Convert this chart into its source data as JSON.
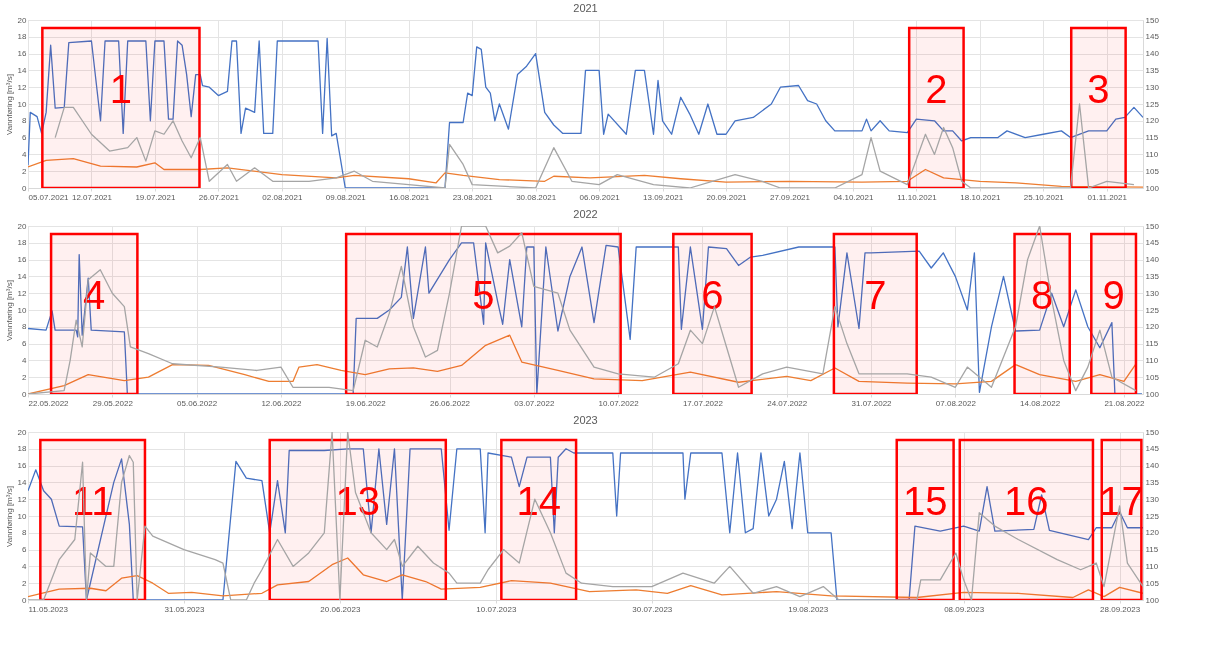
{
  "chart_data": [
    {
      "type": "line",
      "title": "2021",
      "ylabel": "Vannføring [m³/s]",
      "grid": true,
      "xlim": [
        "2021-07-05",
        "2021-11-05"
      ],
      "xticks": [
        {
          "value": "2021-07-05",
          "label": "05.07.2021"
        },
        {
          "value": "2021-07-12",
          "label": "12.07.2021"
        },
        {
          "value": "2021-07-19",
          "label": "19.07.2021"
        },
        {
          "value": "2021-07-26",
          "label": "26.07.2021"
        },
        {
          "value": "2021-08-02",
          "label": "02.08.2021"
        },
        {
          "value": "2021-08-09",
          "label": "09.08.2021"
        },
        {
          "value": "2021-08-16",
          "label": "16.08.2021"
        },
        {
          "value": "2021-08-23",
          "label": "23.08.2021"
        },
        {
          "value": "2021-08-30",
          "label": "30.08.2021"
        },
        {
          "value": "2021-09-06",
          "label": "06.09.2021"
        },
        {
          "value": "2021-09-13",
          "label": "13.09.2021"
        },
        {
          "value": "2021-09-20",
          "label": "20.09.2021"
        },
        {
          "value": "2021-09-27",
          "label": "27.09.2021"
        },
        {
          "value": "2021-10-04",
          "label": "04.10.2021"
        },
        {
          "value": "2021-10-11",
          "label": "11.10.2021"
        },
        {
          "value": "2021-10-18",
          "label": "18.10.2021"
        },
        {
          "value": "2021-10-25",
          "label": "25.10.2021"
        },
        {
          "value": "2021-11-01",
          "label": "01.11.2021"
        }
      ],
      "ylim": [
        0,
        20
      ],
      "yticks": [
        0,
        2,
        4,
        6,
        8,
        10,
        12,
        14,
        16,
        18,
        20
      ],
      "y2lim": [
        100,
        150
      ],
      "y2ticks": [
        100,
        105,
        110,
        115,
        120,
        125,
        130,
        135,
        140,
        145,
        150
      ],
      "series": [
        {
          "color": "#4472c4",
          "x": [
            "2021-07-05",
            "2021-07-05T06:00",
            "2021-07-06",
            "2021-07-06T12:00",
            "2021-07-07",
            "2021-07-07T12:00",
            "2021-07-08",
            "2021-07-09",
            "2021-07-09T12:00",
            "2021-07-12",
            "2021-07-13",
            "2021-07-13T12:00",
            "2021-07-15",
            "2021-07-15T12:00",
            "2021-07-16",
            "2021-07-18",
            "2021-07-18T12:00",
            "2021-07-19",
            "2021-07-20",
            "2021-07-20T12:00",
            "2021-07-21",
            "2021-07-21T12:00",
            "2021-07-22",
            "2021-07-22T12:00",
            "2021-07-23",
            "2021-07-23T12:00",
            "2021-07-24",
            "2021-07-24T06:00",
            "2021-07-25",
            "2021-07-26",
            "2021-07-27",
            "2021-07-27T12:00",
            "2021-07-28",
            "2021-07-28T12:00",
            "2021-07-29",
            "2021-07-30",
            "2021-07-30T12:00",
            "2021-07-31",
            "2021-08-01",
            "2021-08-01T12:00",
            "2021-08-06",
            "2021-08-06T12:00",
            "2021-08-07",
            "2021-08-07T12:00",
            "2021-08-08",
            "2021-08-09",
            "2021-08-20",
            "2021-08-20T12:00",
            "2021-08-22",
            "2021-08-22T12:00",
            "2021-08-23",
            "2021-08-23T12:00",
            "2021-08-24",
            "2021-08-24T12:00",
            "2021-08-25",
            "2021-08-25T12:00",
            "2021-08-26",
            "2021-08-27",
            "2021-08-28",
            "2021-08-29",
            "2021-08-30",
            "2021-08-31",
            "2021-09-01",
            "2021-09-02",
            "2021-09-04",
            "2021-09-04T12:00",
            "2021-09-06",
            "2021-09-06T12:00",
            "2021-09-07",
            "2021-09-09",
            "2021-09-10",
            "2021-09-11",
            "2021-09-12",
            "2021-09-12T12:00",
            "2021-09-13",
            "2021-09-14",
            "2021-09-15",
            "2021-09-16",
            "2021-09-17",
            "2021-09-18",
            "2021-09-19",
            "2021-09-20",
            "2021-09-21",
            "2021-09-23",
            "2021-09-25",
            "2021-09-26",
            "2021-09-28",
            "2021-09-29",
            "2021-09-30",
            "2021-10-01",
            "2021-10-02",
            "2021-10-05",
            "2021-10-05T12:00",
            "2021-10-06",
            "2021-10-07",
            "2021-10-08",
            "2021-10-10",
            "2021-10-11",
            "2021-10-13",
            "2021-10-14",
            "2021-10-15",
            "2021-10-16",
            "2021-10-17",
            "2021-10-20",
            "2021-10-21",
            "2021-10-23",
            "2021-10-25",
            "2021-10-27",
            "2021-10-28",
            "2021-10-30",
            "2021-11-01",
            "2021-11-02",
            "2021-11-03",
            "2021-11-04",
            "2021-11-05"
          ],
          "values": [
            2.7,
            9,
            8.5,
            6.5,
            9,
            17,
            9.5,
            9.6,
            17.3,
            17.5,
            8,
            17.5,
            17.5,
            6.5,
            17.5,
            17.5,
            8,
            17.5,
            17.5,
            8.2,
            8.2,
            17.5,
            17,
            13.5,
            8.5,
            13.5,
            13.5,
            12.2,
            12,
            11,
            11.5,
            17.5,
            17.5,
            6.5,
            9.5,
            9,
            17.5,
            6.5,
            6.5,
            17.5,
            17.5,
            6.5,
            17.8,
            6.2,
            6.5,
            0,
            0,
            7.8,
            7.8,
            11.3,
            11,
            16.8,
            16.5,
            12,
            11.3,
            8,
            10,
            7,
            13.5,
            14.5,
            16,
            9,
            7.5,
            6.5,
            6.5,
            14,
            14,
            6.4,
            8.8,
            6.4,
            14,
            14,
            6.4,
            12.8,
            8,
            6.4,
            10.8,
            8.8,
            6.4,
            10,
            6.4,
            6.4,
            8,
            8.4,
            10,
            12,
            12.2,
            10.4,
            10,
            8,
            6.8,
            6.8,
            8.2,
            6.8,
            8,
            6.8,
            6.6,
            8.2,
            8,
            6.8,
            6.8,
            5.6,
            6,
            6,
            6.8,
            6,
            6.4,
            6.8,
            6,
            6.8,
            6.8,
            8.2,
            8.4,
            9.6,
            8.4
          ]
        },
        {
          "color": "#ed7d31",
          "x": [
            "2021-07-05",
            "2021-07-07",
            "2021-07-10",
            "2021-07-13",
            "2021-07-17",
            "2021-07-19",
            "2021-07-20",
            "2021-07-24",
            "2021-07-27",
            "2021-08-02",
            "2021-08-08",
            "2021-08-10",
            "2021-08-16",
            "2021-08-19",
            "2021-08-20",
            "2021-08-22",
            "2021-08-26",
            "2021-08-31",
            "2021-09-01",
            "2021-09-05",
            "2021-09-11",
            "2021-09-15",
            "2021-09-20",
            "2021-09-27",
            "2021-10-05",
            "2021-10-10",
            "2021-10-12",
            "2021-10-14",
            "2021-10-18",
            "2021-10-22",
            "2021-10-27",
            "2021-11-05"
          ],
          "values": [
            2.5,
            3.3,
            3.5,
            2.6,
            2.5,
            3,
            2.2,
            2.2,
            2.4,
            1.6,
            1.2,
            1.5,
            1.1,
            0.6,
            1.8,
            1.5,
            1,
            0.8,
            1.4,
            1.2,
            1.5,
            1.1,
            0.7,
            0.8,
            0.7,
            0.8,
            2.2,
            1.2,
            0.8,
            0.6,
            0.2,
            0.1
          ]
        },
        {
          "color": "#a5a5a5",
          "axis": "y2",
          "x": [
            "2021-07-08",
            "2021-07-09",
            "2021-07-10",
            "2021-07-12",
            "2021-07-14",
            "2021-07-16",
            "2021-07-17",
            "2021-07-18",
            "2021-07-19",
            "2021-07-20",
            "2021-07-21",
            "2021-07-22",
            "2021-07-23",
            "2021-07-24",
            "2021-07-25",
            "2021-07-27",
            "2021-07-28",
            "2021-07-30",
            "2021-08-01",
            "2021-08-05",
            "2021-08-08",
            "2021-08-10",
            "2021-08-12",
            "2021-08-16",
            "2021-08-20",
            "2021-08-20T12:00",
            "2021-08-22",
            "2021-08-23",
            "2021-08-30",
            "2021-09-01",
            "2021-09-03",
            "2021-09-06",
            "2021-09-08",
            "2021-09-12",
            "2021-09-16",
            "2021-09-21",
            "2021-09-24",
            "2021-09-26",
            "2021-10-02",
            "2021-10-05",
            "2021-10-06",
            "2021-10-07",
            "2021-10-10",
            "2021-10-12",
            "2021-10-13",
            "2021-10-14",
            "2021-10-15",
            "2021-10-16",
            "2021-10-17",
            "2021-10-28",
            "2021-10-29",
            "2021-10-30",
            "2021-11-01",
            "2021-11-04"
          ],
          "values": [
            115,
            124,
            124,
            116,
            111,
            112,
            115,
            108,
            117,
            116,
            120,
            114,
            109,
            115,
            102,
            107,
            102,
            106,
            102,
            102,
            103,
            105,
            102,
            101,
            100,
            113,
            107,
            101,
            100,
            112,
            102,
            101,
            104,
            101,
            100,
            104,
            102,
            100,
            100,
            104,
            115,
            105,
            101,
            116,
            110,
            118,
            112,
            102,
            100,
            100,
            125,
            100,
            102,
            101
          ]
        }
      ],
      "bands": [
        {
          "axis": "x",
          "from": "2021-07-06T14:00",
          "to": "2021-07-23T22:00",
          "label": "1",
          "color": "#ff0000"
        },
        {
          "axis": "x",
          "from": "2021-10-10T05:00",
          "to": "2021-10-16T05:00",
          "label": "2",
          "color": "#ff0000"
        },
        {
          "axis": "x",
          "from": "2021-10-28T02:00",
          "to": "2021-11-03T02:00",
          "label": "3",
          "color": "#ff0000"
        }
      ]
    },
    {
      "type": "line",
      "title": "2022",
      "ylabel": "Vannføring [m³/s]",
      "grid": true,
      "xlim": [
        "2022-05-22",
        "2022-08-22T14:00"
      ],
      "xticks": [
        {
          "value": "2022-05-22",
          "label": "22.05.2022"
        },
        {
          "value": "2022-05-29",
          "label": "29.05.2022"
        },
        {
          "value": "2022-06-05",
          "label": "05.06.2022"
        },
        {
          "value": "2022-06-12",
          "label": "12.06.2022"
        },
        {
          "value": "2022-06-19",
          "label": "19.06.2022"
        },
        {
          "value": "2022-06-26",
          "label": "26.06.2022"
        },
        {
          "value": "2022-07-03",
          "label": "03.07.2022"
        },
        {
          "value": "2022-07-10",
          "label": "10.07.2022"
        },
        {
          "value": "2022-07-17",
          "label": "17.07.2022"
        },
        {
          "value": "2022-07-24",
          "label": "24.07.2022"
        },
        {
          "value": "2022-07-31",
          "label": "31.07.2022"
        },
        {
          "value": "2022-08-07",
          "label": "07.08.2022"
        },
        {
          "value": "2022-08-14",
          "label": "14.08.2022"
        },
        {
          "value": "2022-08-21",
          "label": "21.08.2022"
        }
      ],
      "ylim": [
        0,
        20
      ],
      "yticks": [
        0,
        2,
        4,
        6,
        8,
        10,
        12,
        14,
        16,
        18,
        20
      ],
      "y2lim": [
        100,
        150
      ],
      "y2ticks": [
        100,
        105,
        110,
        115,
        120,
        125,
        130,
        135,
        140,
        145,
        150
      ],
      "series": [
        {
          "color": "#4472c4",
          "x": [
            "2022-05-22",
            "2022-05-23T12:00",
            "2022-05-24",
            "2022-05-24T06:00",
            "2022-05-26",
            "2022-05-26T03:00",
            "2022-05-26T06:00",
            "2022-05-26T12:00",
            "2022-05-27",
            "2022-05-27T06:00",
            "2022-05-30",
            "2022-05-30T06:00",
            "2022-06-18",
            "2022-06-18T06:00",
            "2022-06-20",
            "2022-06-21",
            "2022-06-22",
            "2022-06-22T12:00",
            "2022-06-23",
            "2022-06-24",
            "2022-06-24T07:00",
            "2022-06-26",
            "2022-06-27",
            "2022-06-28",
            "2022-06-28T20:00",
            "2022-06-29",
            "2022-06-30",
            "2022-06-30T10:00",
            "2022-07-01",
            "2022-07-02",
            "2022-07-02T10:00",
            "2022-07-03",
            "2022-07-03T06:00",
            "2022-07-04",
            "2022-07-05",
            "2022-07-06",
            "2022-07-07",
            "2022-07-08",
            "2022-07-09",
            "2022-07-10",
            "2022-07-11",
            "2022-07-11T12:00",
            "2022-07-15",
            "2022-07-15T06:00",
            "2022-07-16",
            "2022-07-17",
            "2022-07-17T12:00",
            "2022-07-19",
            "2022-07-20",
            "2022-07-21",
            "2022-07-22",
            "2022-07-25",
            "2022-07-28",
            "2022-07-28T06:00",
            "2022-07-29",
            "2022-07-30",
            "2022-07-30T12:00",
            "2022-07-31",
            "2022-08-04",
            "2022-08-05",
            "2022-08-06",
            "2022-08-07",
            "2022-08-08",
            "2022-08-08T14:00",
            "2022-08-09",
            "2022-08-10",
            "2022-08-11",
            "2022-08-12",
            "2022-08-14",
            "2022-08-15",
            "2022-08-16",
            "2022-08-17",
            "2022-08-18",
            "2022-08-19",
            "2022-08-20",
            "2022-08-20T06:00",
            "2022-08-22T12:00"
          ],
          "values": [
            7.8,
            7.6,
            9.9,
            7.6,
            7.6,
            6.8,
            16.6,
            7,
            13.8,
            7.6,
            7.4,
            0,
            0,
            9,
            9,
            10,
            11.5,
            17.5,
            9,
            17.5,
            12,
            16,
            18,
            18,
            8.3,
            18,
            11,
            8.3,
            16,
            8,
            17.5,
            17.5,
            0,
            17.5,
            7.5,
            14,
            17.5,
            8.5,
            17.7,
            17.5,
            6.5,
            17.5,
            17.5,
            7.7,
            17.5,
            7.7,
            17.5,
            17.3,
            15.3,
            16.3,
            16.5,
            17.5,
            17.5,
            8,
            16.8,
            7.8,
            16.8,
            16.8,
            17,
            15,
            16.8,
            14,
            10,
            16.8,
            0.2,
            8,
            14,
            7.5,
            7.6,
            12,
            8,
            12.4,
            8,
            5.5,
            8.5,
            0,
            0
          ]
        },
        {
          "color": "#ed7d31",
          "x": [
            "2022-05-22",
            "2022-05-25",
            "2022-05-27",
            "2022-05-30",
            "2022-06-01",
            "2022-06-03",
            "2022-06-06",
            "2022-06-09",
            "2022-06-11",
            "2022-06-13",
            "2022-06-13T12:00",
            "2022-06-15",
            "2022-06-17",
            "2022-06-19",
            "2022-06-21",
            "2022-06-23",
            "2022-06-25",
            "2022-06-27",
            "2022-06-29",
            "2022-07-01",
            "2022-07-02",
            "2022-07-05",
            "2022-07-08",
            "2022-07-12",
            "2022-07-16",
            "2022-07-20",
            "2022-07-24",
            "2022-07-26",
            "2022-07-28",
            "2022-07-30",
            "2022-08-03",
            "2022-08-07",
            "2022-08-10",
            "2022-08-12",
            "2022-08-14",
            "2022-08-17",
            "2022-08-19",
            "2022-08-21",
            "2022-08-22"
          ],
          "values": [
            0,
            1,
            2.3,
            1.6,
            2,
            3.5,
            3.4,
            2.3,
            1.5,
            1.5,
            3.2,
            3.5,
            2.8,
            2.3,
            3,
            3.1,
            2.7,
            3.4,
            5.8,
            7,
            3.8,
            2.8,
            1.8,
            1.6,
            2.6,
            1.4,
            2.1,
            1.6,
            3.1,
            1.5,
            1.3,
            1.2,
            1.5,
            3.5,
            2.3,
            1.5,
            2.3,
            1.5,
            3.6
          ]
        },
        {
          "color": "#a5a5a5",
          "axis": "y2",
          "x": [
            "2022-05-22",
            "2022-05-25",
            "2022-05-25T12:00",
            "2022-05-26",
            "2022-05-26T12:00",
            "2022-05-27",
            "2022-05-28",
            "2022-05-29",
            "2022-05-30",
            "2022-05-30T12:00",
            "2022-06-01",
            "2022-06-03",
            "2022-06-07",
            "2022-06-10",
            "2022-06-12",
            "2022-06-13",
            "2022-06-16",
            "2022-06-18",
            "2022-06-19",
            "2022-06-20",
            "2022-06-21",
            "2022-06-22",
            "2022-06-23",
            "2022-06-24",
            "2022-06-25",
            "2022-06-26",
            "2022-06-27",
            "2022-06-29",
            "2022-06-30",
            "2022-07-01",
            "2022-07-02",
            "2022-07-03",
            "2022-07-05",
            "2022-07-06",
            "2022-07-08",
            "2022-07-10",
            "2022-07-13",
            "2022-07-15",
            "2022-07-16",
            "2022-07-17",
            "2022-07-18",
            "2022-07-19",
            "2022-07-20",
            "2022-07-22",
            "2022-07-24",
            "2022-07-27",
            "2022-07-28",
            "2022-07-29",
            "2022-07-30",
            "2022-08-03",
            "2022-08-05",
            "2022-08-07",
            "2022-08-08",
            "2022-08-10",
            "2022-08-12",
            "2022-08-13",
            "2022-08-14",
            "2022-08-15",
            "2022-08-16",
            "2022-08-17",
            "2022-08-18",
            "2022-08-19",
            "2022-08-20",
            "2022-08-22"
          ],
          "values": [
            100,
            101,
            110,
            122,
            114,
            134,
            137,
            130,
            126,
            114,
            112,
            109,
            108,
            107,
            108,
            102,
            102,
            101,
            116,
            114,
            124,
            138,
            120,
            111,
            113,
            130,
            150,
            150,
            142,
            144,
            148,
            132,
            130,
            119,
            108,
            106,
            105,
            109,
            119,
            115,
            126,
            114,
            102,
            106,
            108,
            106,
            126,
            115,
            106,
            106,
            105,
            102,
            108,
            102,
            120,
            140,
            150,
            128,
            110,
            101,
            108,
            119,
            105,
            101
          ]
        }
      ],
      "bands": [
        {
          "axis": "x",
          "from": "2022-05-23T22:00",
          "to": "2022-05-31T02:00",
          "label": "4",
          "color": "#ff0000"
        },
        {
          "axis": "x",
          "from": "2022-06-17T10:00",
          "to": "2022-07-10T05:00",
          "label": "5",
          "color": "#ff0000"
        },
        {
          "axis": "x",
          "from": "2022-07-14T14:00",
          "to": "2022-07-21T02:00",
          "label": "6",
          "color": "#ff0000"
        },
        {
          "axis": "x",
          "from": "2022-07-27T22:00",
          "to": "2022-08-03T19:00",
          "label": "7",
          "color": "#ff0000"
        },
        {
          "axis": "x",
          "from": "2022-08-11T22:00",
          "to": "2022-08-16T12:00",
          "label": "8",
          "color": "#ff0000"
        },
        {
          "axis": "x",
          "from": "2022-08-18T07:00",
          "to": "2022-08-22T00:00",
          "label": "9",
          "color": "#ff0000"
        }
      ]
    },
    {
      "type": "line",
      "title": "2023",
      "ylabel": "Vannføring [m³/s]",
      "grid": true,
      "xlim": [
        "2023-05-11",
        "2023-10-01"
      ],
      "xticks": [
        {
          "value": "2023-05-11",
          "label": "11.05.2023"
        },
        {
          "value": "2023-05-31",
          "label": "31.05.2023"
        },
        {
          "value": "2023-06-20",
          "label": "20.06.2023"
        },
        {
          "value": "2023-07-10",
          "label": "10.07.2023"
        },
        {
          "value": "2023-07-30",
          "label": "30.07.2023"
        },
        {
          "value": "2023-08-19",
          "label": "19.08.2023"
        },
        {
          "value": "2023-09-08",
          "label": "08.09.2023"
        },
        {
          "value": "2023-09-28",
          "label": "28.09.2023"
        }
      ],
      "ylim": [
        0,
        20
      ],
      "yticks": [
        0,
        2,
        4,
        6,
        8,
        10,
        12,
        14,
        16,
        18,
        20
      ],
      "y2lim": [
        100,
        150
      ],
      "y2ticks": [
        100,
        105,
        110,
        115,
        120,
        125,
        130,
        135,
        140,
        145,
        150
      ],
      "series": [
        {
          "color": "#4472c4",
          "x": [
            "2023-05-11",
            "2023-05-12",
            "2023-05-13",
            "2023-05-14",
            "2023-05-15",
            "2023-05-18",
            "2023-05-18T12:00",
            "2023-05-22",
            "2023-05-23",
            "2023-05-24",
            "2023-05-24T12:00",
            "2023-06-05",
            "2023-06-06T16:00",
            "2023-06-08",
            "2023-06-10",
            "2023-06-11",
            "2023-06-12",
            "2023-06-13",
            "2023-06-13T12:00",
            "2023-06-18",
            "2023-06-21",
            "2023-06-23",
            "2023-06-24",
            "2023-06-25",
            "2023-06-26",
            "2023-06-27",
            "2023-06-28",
            "2023-06-29",
            "2023-07-03",
            "2023-07-04",
            "2023-07-05",
            "2023-07-08",
            "2023-07-08T15:00",
            "2023-07-09",
            "2023-07-12",
            "2023-07-13",
            "2023-07-14",
            "2023-07-17",
            "2023-07-17T12:00",
            "2023-07-18",
            "2023-07-19",
            "2023-07-20",
            "2023-07-25",
            "2023-07-25T12:00",
            "2023-07-26",
            "2023-08-03",
            "2023-08-03T06:00",
            "2023-08-04",
            "2023-08-08",
            "2023-08-09",
            "2023-08-10",
            "2023-08-11",
            "2023-08-12",
            "2023-08-13",
            "2023-08-14",
            "2023-08-15",
            "2023-08-16",
            "2023-08-17",
            "2023-08-18",
            "2023-08-19",
            "2023-08-22",
            "2023-08-22T18:00",
            "2023-09-01",
            "2023-09-01T18:00",
            "2023-09-05",
            "2023-09-08",
            "2023-09-10",
            "2023-09-11",
            "2023-09-12",
            "2023-09-17",
            "2023-09-18",
            "2023-09-19",
            "2023-09-24",
            "2023-09-25",
            "2023-09-27",
            "2023-09-28",
            "2023-09-29",
            "2023-10-01"
          ],
          "values": [
            13,
            15.5,
            13,
            12,
            8.8,
            8.7,
            0,
            14,
            16.8,
            9,
            0,
            0,
            16.5,
            14.5,
            14.2,
            8,
            14.2,
            8,
            17.8,
            17.8,
            18,
            18,
            8,
            18,
            9,
            18,
            0,
            18,
            18,
            8.3,
            18,
            18,
            8,
            17.5,
            17,
            13.5,
            17,
            17,
            8,
            17,
            18,
            17.5,
            17.5,
            10,
            17.5,
            17.5,
            12,
            17.5,
            17.5,
            8,
            17.5,
            8,
            8.5,
            17.5,
            10,
            12,
            16.5,
            8.5,
            17.5,
            8,
            8,
            0,
            0,
            8.8,
            8.2,
            8.8,
            8.2,
            13.5,
            8.2,
            8.4,
            12.5,
            8.3,
            7.2,
            8.6,
            8.6,
            10.5,
            8.6,
            8.6
          ]
        },
        {
          "color": "#ed7d31",
          "x": [
            "2023-05-11",
            "2023-05-15",
            "2023-05-19",
            "2023-05-21",
            "2023-05-23",
            "2023-05-25",
            "2023-05-27",
            "2023-05-29",
            "2023-06-01",
            "2023-06-05",
            "2023-06-10",
            "2023-06-12",
            "2023-06-16",
            "2023-06-19",
            "2023-06-21",
            "2023-06-23",
            "2023-06-26",
            "2023-06-28",
            "2023-07-01",
            "2023-07-03",
            "2023-07-08",
            "2023-07-12",
            "2023-07-17",
            "2023-07-22",
            "2023-07-28",
            "2023-08-01",
            "2023-08-04",
            "2023-08-08",
            "2023-08-15",
            "2023-08-22",
            "2023-09-02",
            "2023-09-08",
            "2023-09-15",
            "2023-09-22",
            "2023-09-24",
            "2023-09-26",
            "2023-09-28",
            "2023-10-01"
          ],
          "values": [
            0.4,
            1.3,
            1.4,
            1.1,
            2.6,
            2.9,
            2,
            0.8,
            0.9,
            0.5,
            0.8,
            1.8,
            2.2,
            4.2,
            5,
            3,
            2.2,
            3,
            2.2,
            1.3,
            1.5,
            2.3,
            2,
            1,
            1.2,
            0.8,
            1.7,
            0.6,
            1,
            0.5,
            0.3,
            0.9,
            0.8,
            0.3,
            1.2,
            0.4,
            1.5,
            0.8
          ]
        },
        {
          "color": "#a5a5a5",
          "axis": "y2",
          "x": [
            "2023-05-11",
            "2023-05-13",
            "2023-05-15",
            "2023-05-17",
            "2023-05-18",
            "2023-05-18T12:00",
            "2023-05-19",
            "2023-05-21",
            "2023-05-22",
            "2023-05-23",
            "2023-05-24",
            "2023-05-24T12:00",
            "2023-05-25",
            "2023-05-26",
            "2023-05-27",
            "2023-05-31",
            "2023-06-04",
            "2023-06-05",
            "2023-06-06",
            "2023-06-08",
            "2023-06-09",
            "2023-06-10",
            "2023-06-12",
            "2023-06-14",
            "2023-06-16",
            "2023-06-18",
            "2023-06-19",
            "2023-06-20",
            "2023-06-21",
            "2023-06-22",
            "2023-06-24",
            "2023-06-26",
            "2023-06-27",
            "2023-06-28",
            "2023-06-30",
            "2023-07-02",
            "2023-07-04",
            "2023-07-05",
            "2023-07-08",
            "2023-07-09",
            "2023-07-11",
            "2023-07-13",
            "2023-07-15",
            "2023-07-17",
            "2023-07-19",
            "2023-07-21",
            "2023-07-25",
            "2023-07-30",
            "2023-08-03",
            "2023-08-07",
            "2023-08-09",
            "2023-08-12",
            "2023-08-15",
            "2023-08-18",
            "2023-08-21",
            "2023-08-23",
            "2023-08-28",
            "2023-09-02",
            "2023-09-02T12:00",
            "2023-09-05",
            "2023-09-07",
            "2023-09-08",
            "2023-09-09",
            "2023-09-10",
            "2023-09-12",
            "2023-09-15",
            "2023-09-20",
            "2023-09-23",
            "2023-09-25",
            "2023-09-26",
            "2023-09-28",
            "2023-09-29",
            "2023-10-01"
          ],
          "values": [
            100,
            100,
            112,
            118,
            141,
            100,
            114,
            110,
            110,
            135,
            143,
            141,
            100,
            122,
            119,
            115,
            112,
            111,
            100,
            100,
            105,
            109,
            118,
            110,
            114,
            120,
            150,
            100,
            150,
            132,
            120,
            115,
            118,
            110,
            116,
            111,
            108,
            105,
            105,
            109,
            115,
            111,
            130,
            120,
            108,
            105,
            104,
            104,
            108,
            105,
            110,
            102,
            104,
            101,
            104,
            100,
            100,
            100,
            106,
            106,
            114,
            106,
            100,
            126,
            122,
            118,
            112,
            109,
            111,
            104,
            128,
            111,
            104
          ]
        }
      ],
      "bands": [
        {
          "axis": "x",
          "from": "2023-05-12T14:00",
          "to": "2023-05-26",
          "label": "11",
          "color": "#ff0000"
        },
        {
          "axis": "x",
          "from": "2023-06-11",
          "to": "2023-07-03T14:00",
          "label": "13",
          "color": "#ff0000"
        },
        {
          "axis": "x",
          "from": "2023-07-10T17:00",
          "to": "2023-07-20T07:00",
          "label": "14",
          "color": "#ff0000"
        },
        {
          "axis": "x",
          "from": "2023-08-30T10:00",
          "to": "2023-09-06T17:00",
          "label": "15",
          "color": "#ff0000"
        },
        {
          "axis": "x",
          "from": "2023-09-07T12:00",
          "to": "2023-09-24T14:00",
          "label": "16",
          "color": "#ff0000"
        },
        {
          "axis": "x",
          "from": "2023-09-25T17:00",
          "to": "2023-09-30T19:00",
          "label": "17",
          "color": "#ff0000"
        }
      ]
    }
  ]
}
